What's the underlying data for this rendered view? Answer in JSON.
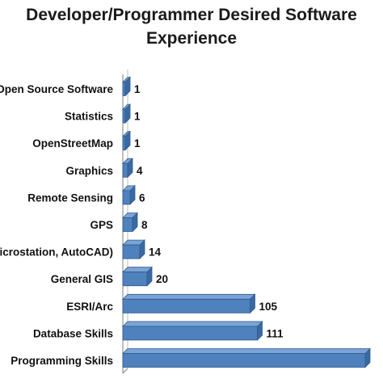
{
  "chart_data": {
    "type": "bar",
    "orientation": "horizontal",
    "title_line1": "Developer/Programmer Desired Software",
    "title_line2": "Experience",
    "categories": [
      "Open Source Software",
      "Statistics",
      "OpenStreetMap",
      "Graphics",
      "Remote Sensing",
      "GPS",
      "CAD (Microstation, AutoCAD)",
      "General GIS",
      "ESRI/Arc",
      "Database Skills",
      "Programming Skills"
    ],
    "values": [
      1,
      1,
      1,
      4,
      6,
      8,
      14,
      20,
      105,
      111,
      200
    ],
    "value_labels": [
      "1",
      "1",
      "1",
      "4",
      "6",
      "8",
      "14",
      "20",
      "105",
      "111",
      ""
    ],
    "bar_color": "#4f81bd",
    "bar_top_color": "#7ba3d6",
    "bar_side_color": "#3a6aa0",
    "bar_border": "#2e5a8e",
    "grid": false,
    "legend": "none"
  }
}
